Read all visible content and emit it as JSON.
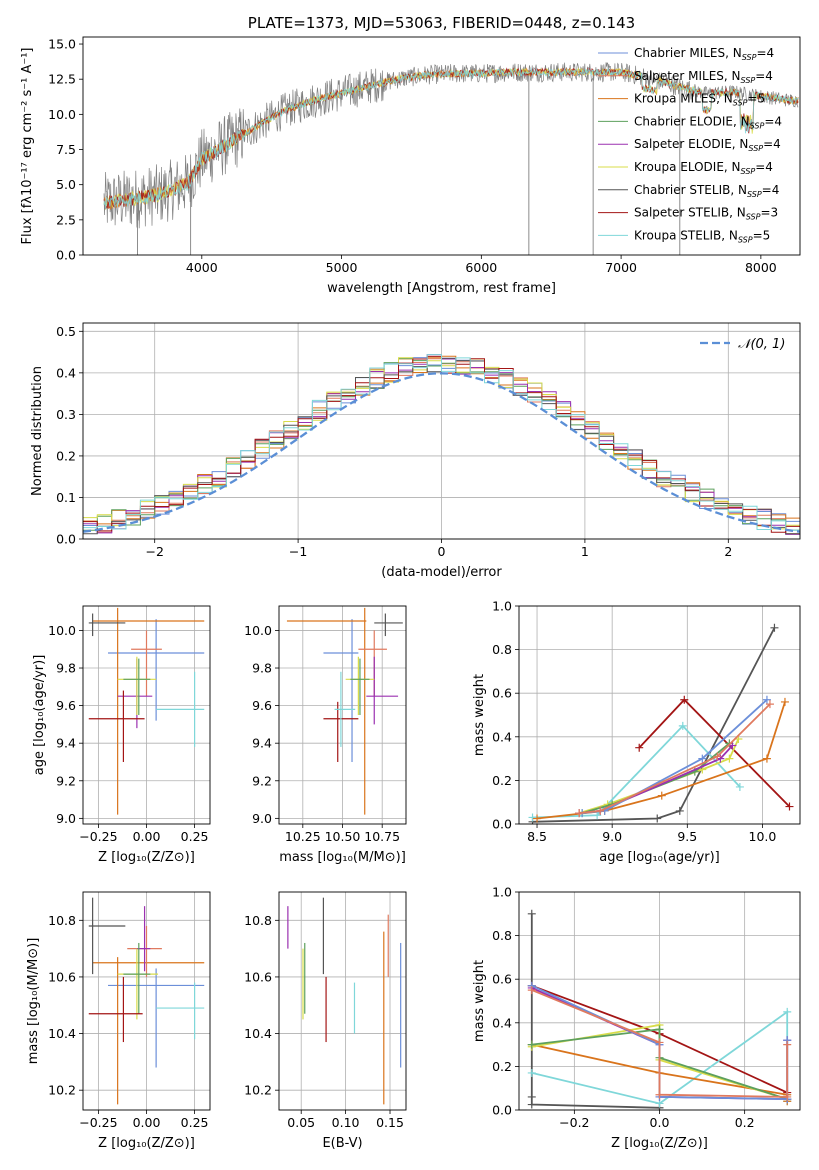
{
  "colors": {
    "Chabrier MILES": "#6c8fd9",
    "Salpeter MILES": "#e07a5f",
    "Kroupa MILES": "#d9741c",
    "Chabrier ELODIE": "#5da05d",
    "Salpeter ELODIE": "#9b30b0",
    "Kroupa ELODIE": "#d8dc4a",
    "Chabrier STELIB": "#555555",
    "Salpeter STELIB": "#a31515",
    "Kroupa STELIB": "#7fd7d9",
    "gaussian": "#5b8fd6",
    "data": "#808080"
  },
  "chart_data": [
    {
      "id": "spectrum",
      "type": "line",
      "title": "PLATE=1373, MJD=53063, FIBERID=0448, z=0.143",
      "xlabel": "wavelength [Angstrom, rest frame]",
      "ylabel": "Flux [fλ10⁻¹⁷ erg cm⁻² s⁻¹ A⁻¹]",
      "xlim": [
        3150,
        8280
      ],
      "ylim": [
        0,
        15.5
      ],
      "xticks": [
        4000,
        5000,
        6000,
        7000,
        8000
      ],
      "yticks": [
        0.0,
        2.5,
        5.0,
        7.5,
        10.0,
        12.5,
        15.0
      ],
      "legend_position": "top-right",
      "legend": [
        {
          "name": "Chabrier MILES",
          "nssp": "4"
        },
        {
          "name": "Salpeter MILES",
          "nssp": "4"
        },
        {
          "name": "Kroupa MILES",
          "nssp": "5"
        },
        {
          "name": "Chabrier ELODIE",
          "nssp": "4"
        },
        {
          "name": "Salpeter ELODIE",
          "nssp": "4"
        },
        {
          "name": "Kroupa ELODIE",
          "nssp": "4"
        },
        {
          "name": "Chabrier STELIB",
          "nssp": "4"
        },
        {
          "name": "Salpeter STELIB",
          "nssp": "3"
        },
        {
          "name": "Kroupa STELIB",
          "nssp": "5"
        }
      ],
      "continuum": {
        "wavelength": [
          3300,
          3500,
          3700,
          3900,
          4000,
          4200,
          4400,
          4600,
          4800,
          5000,
          5200,
          5400,
          5600,
          5800,
          6000,
          6200,
          6400,
          6600,
          6800,
          7000,
          7200,
          7400,
          7600,
          7800,
          8000,
          8200
        ],
        "flux": [
          3.7,
          4.0,
          4.3,
          5.1,
          6.8,
          8.0,
          9.2,
          10.3,
          11.0,
          11.5,
          12.0,
          12.5,
          12.8,
          12.9,
          12.9,
          13.0,
          13.0,
          13.0,
          13.0,
          13.0,
          12.6,
          12.0,
          11.5,
          11.6,
          11.3,
          11.0
        ]
      },
      "spikes": [
        {
          "wavelength": 3540,
          "flux_min": 0.0
        },
        {
          "wavelength": 3920,
          "flux_min": 0.0
        },
        {
          "wavelength": 6340,
          "flux_min": 0.0
        },
        {
          "wavelength": 6800,
          "flux_min": 0.0
        },
        {
          "wavelength": 7420,
          "flux_min": 0.0
        }
      ]
    },
    {
      "id": "residuals",
      "type": "histogram",
      "xlabel": "(data-model)/error",
      "ylabel": "Normed distribution",
      "xlim": [
        -2.5,
        2.5
      ],
      "ylim": [
        0,
        0.52
      ],
      "xticks": [
        -2,
        -1,
        0,
        1,
        2
      ],
      "yticks": [
        0.0,
        0.1,
        0.2,
        0.3,
        0.4,
        0.5
      ],
      "bin_width": 0.1,
      "legend_position": "top-right",
      "gaussian_label": "𝒩(0, 1)"
    },
    {
      "id": "age-vs-Z",
      "type": "errorbar",
      "xlabel": "Z [log₁₀(Z/Z⊙)]",
      "ylabel": "age  [log₁₀(age/yr)]",
      "xlim": [
        -0.33,
        0.33
      ],
      "ylim": [
        8.97,
        10.13
      ],
      "xticks": [
        -0.25,
        0.0,
        0.25
      ],
      "yticks": [
        9.0,
        9.2,
        9.4,
        9.6,
        9.8,
        10.0
      ],
      "points": [
        {
          "model": "Chabrier MILES",
          "x": 0.05,
          "xlo": -0.2,
          "xhi": 0.3,
          "y": 9.88,
          "ylo": 9.52,
          "yhi": 10.06
        },
        {
          "model": "Kroupa MILES",
          "x": -0.15,
          "xlo": -0.28,
          "xhi": 0.3,
          "y": 10.05,
          "ylo": 9.02,
          "yhi": 10.12
        },
        {
          "model": "Salpeter MILES",
          "x": 0.0,
          "xlo": -0.08,
          "xhi": 0.08,
          "y": 9.9,
          "ylo": 9.65,
          "yhi": 10.0
        },
        {
          "model": "Salpeter ELODIE",
          "x": -0.05,
          "xlo": -0.15,
          "xhi": 0.03,
          "y": 9.65,
          "ylo": 9.48,
          "yhi": 9.85
        },
        {
          "model": "Kroupa ELODIE",
          "x": -0.05,
          "xlo": -0.15,
          "xhi": 0.05,
          "y": 9.74,
          "ylo": 9.55,
          "yhi": 9.86
        },
        {
          "model": "Chabrier ELODIE",
          "x": -0.04,
          "xlo": -0.12,
          "xhi": 0.02,
          "y": 9.74,
          "ylo": 9.55,
          "yhi": 9.85
        },
        {
          "model": "Chabrier STELIB",
          "x": -0.28,
          "xlo": -0.3,
          "xhi": -0.11,
          "y": 10.04,
          "ylo": 9.97,
          "yhi": 10.09
        },
        {
          "model": "Salpeter STELIB",
          "x": -0.12,
          "xlo": -0.3,
          "xhi": -0.01,
          "y": 9.53,
          "ylo": 9.3,
          "yhi": 9.68
        },
        {
          "model": "Kroupa STELIB",
          "x": 0.25,
          "xlo": 0.05,
          "xhi": 0.3,
          "y": 9.58,
          "ylo": 9.38,
          "yhi": 9.78
        }
      ]
    },
    {
      "id": "age-vs-mass",
      "type": "errorbar",
      "xlabel": "mass [log₁₀(M/M⊙)]",
      "ylabel": "",
      "xlim": [
        10.1,
        10.9
      ],
      "ylim": [
        8.97,
        10.13
      ],
      "xticks": [
        10.25,
        10.5,
        10.75
      ],
      "yticks": [
        9.0,
        9.2,
        9.4,
        9.6,
        9.8,
        10.0
      ],
      "points": [
        {
          "model": "Chabrier MILES",
          "x": 10.56,
          "xlo": 10.38,
          "xhi": 10.6,
          "y": 9.88,
          "ylo": 9.3,
          "yhi": 10.06
        },
        {
          "model": "Kroupa MILES",
          "x": 10.64,
          "xlo": 10.15,
          "xhi": 10.65,
          "y": 10.05,
          "ylo": 9.02,
          "yhi": 10.12
        },
        {
          "model": "Salpeter MILES",
          "x": 10.7,
          "xlo": 10.6,
          "xhi": 10.78,
          "y": 9.9,
          "ylo": 9.65,
          "yhi": 10.0
        },
        {
          "model": "Salpeter ELODIE",
          "x": 10.7,
          "xlo": 10.65,
          "xhi": 10.85,
          "y": 9.65,
          "ylo": 9.5,
          "yhi": 9.86
        },
        {
          "model": "Kroupa ELODIE",
          "x": 10.6,
          "xlo": 10.52,
          "xhi": 10.7,
          "y": 9.74,
          "ylo": 9.55,
          "yhi": 9.86
        },
        {
          "model": "Chabrier ELODIE",
          "x": 10.61,
          "xlo": 10.55,
          "xhi": 10.67,
          "y": 9.74,
          "ylo": 9.55,
          "yhi": 9.85
        },
        {
          "model": "Chabrier STELIB",
          "x": 10.77,
          "xlo": 10.7,
          "xhi": 10.88,
          "y": 10.04,
          "ylo": 9.97,
          "yhi": 10.09
        },
        {
          "model": "Salpeter STELIB",
          "x": 10.47,
          "xlo": 10.38,
          "xhi": 10.6,
          "y": 9.53,
          "ylo": 9.3,
          "yhi": 9.62
        },
        {
          "model": "Kroupa STELIB",
          "x": 10.49,
          "xlo": 10.45,
          "xhi": 10.58,
          "y": 9.58,
          "ylo": 9.38,
          "yhi": 9.78
        }
      ]
    },
    {
      "id": "weight-vs-age",
      "type": "line",
      "xlabel": "age  [log₁₀(age/yr)]",
      "ylabel": "mass weight",
      "xlim": [
        8.38,
        10.25
      ],
      "ylim": [
        0,
        1.0
      ],
      "xticks": [
        8.5,
        9.0,
        9.5,
        10.0
      ],
      "yticks": [
        0.0,
        0.2,
        0.4,
        0.6,
        0.8,
        1.0
      ],
      "series": [
        {
          "model": "Chabrier STELIB",
          "x": [
            8.47,
            9.3,
            9.45,
            10.08
          ],
          "y": [
            0.01,
            0.025,
            0.06,
            0.9
          ]
        },
        {
          "model": "Salpeter STELIB",
          "x": [
            9.18,
            9.48,
            10.18
          ],
          "y": [
            0.35,
            0.57,
            0.08
          ]
        },
        {
          "model": "Kroupa STELIB",
          "x": [
            8.47,
            8.9,
            9.47,
            9.85
          ],
          "y": [
            0.03,
            0.04,
            0.45,
            0.17
          ]
        },
        {
          "model": "Kroupa MILES",
          "x": [
            8.5,
            8.95,
            9.33,
            10.03,
            10.15
          ],
          "y": [
            0.025,
            0.06,
            0.13,
            0.3,
            0.56
          ]
        },
        {
          "model": "Kroupa ELODIE",
          "x": [
            8.78,
            8.97,
            9.6,
            9.78,
            9.84
          ],
          "y": [
            0.05,
            0.09,
            0.25,
            0.3,
            0.39
          ]
        },
        {
          "model": "Chabrier ELODIE",
          "x": [
            8.8,
            9.0,
            9.55,
            9.78
          ],
          "y": [
            0.05,
            0.09,
            0.24,
            0.37
          ]
        },
        {
          "model": "Salpeter ELODIE",
          "x": [
            8.78,
            8.92,
            9.72,
            9.8
          ],
          "y": [
            0.05,
            0.06,
            0.3,
            0.36
          ]
        },
        {
          "model": "Chabrier MILES",
          "x": [
            8.8,
            8.95,
            9.6,
            10.03
          ],
          "y": [
            0.05,
            0.06,
            0.3,
            0.57
          ]
        },
        {
          "model": "Salpeter MILES",
          "x": [
            8.78,
            8.92,
            9.7,
            10.05
          ],
          "y": [
            0.05,
            0.06,
            0.31,
            0.55
          ]
        }
      ]
    },
    {
      "id": "mass-vs-Z",
      "type": "errorbar",
      "xlabel": "Z [log₁₀(Z/Z⊙)]",
      "ylabel": "mass [log₁₀(M/M⊙)]",
      "xlim": [
        -0.33,
        0.33
      ],
      "ylim": [
        10.13,
        10.9
      ],
      "xticks": [
        -0.25,
        0.0,
        0.25
      ],
      "yticks": [
        10.2,
        10.4,
        10.6,
        10.8
      ],
      "points": [
        {
          "model": "Chabrier MILES",
          "x": 0.05,
          "xlo": -0.2,
          "xhi": 0.3,
          "y": 10.57,
          "ylo": 10.28,
          "yhi": 10.63
        },
        {
          "model": "Kroupa MILES",
          "x": -0.15,
          "xlo": -0.28,
          "xhi": 0.3,
          "y": 10.65,
          "ylo": 10.15,
          "yhi": 10.67
        },
        {
          "model": "Salpeter MILES",
          "x": 0.0,
          "xlo": -0.1,
          "xhi": 0.08,
          "y": 10.7,
          "ylo": 10.6,
          "yhi": 10.78
        },
        {
          "model": "Salpeter ELODIE",
          "x": -0.01,
          "xlo": -0.05,
          "xhi": 0.02,
          "y": 10.7,
          "ylo": 10.62,
          "yhi": 10.85
        },
        {
          "model": "Kroupa ELODIE",
          "x": -0.05,
          "xlo": -0.15,
          "xhi": 0.06,
          "y": 10.61,
          "ylo": 10.45,
          "yhi": 10.7
        },
        {
          "model": "Chabrier ELODIE",
          "x": -0.04,
          "xlo": -0.12,
          "xhi": 0.02,
          "y": 10.61,
          "ylo": 10.47,
          "yhi": 10.72
        },
        {
          "model": "Chabrier STELIB",
          "x": -0.28,
          "xlo": -0.3,
          "xhi": -0.11,
          "y": 10.78,
          "ylo": 10.61,
          "yhi": 10.88
        },
        {
          "model": "Salpeter STELIB",
          "x": -0.12,
          "xlo": -0.3,
          "xhi": -0.02,
          "y": 10.47,
          "ylo": 10.37,
          "yhi": 10.6
        },
        {
          "model": "Kroupa STELIB",
          "x": 0.25,
          "xlo": 0.05,
          "xhi": 0.3,
          "y": 10.49,
          "ylo": 10.38,
          "yhi": 10.58
        }
      ]
    },
    {
      "id": "mass-vs-ebv",
      "type": "errorbar",
      "xlabel": "E(B-V)",
      "ylabel": "",
      "xlim": [
        0.025,
        0.168
      ],
      "ylim": [
        10.13,
        10.9
      ],
      "xticks": [
        0.05,
        0.1,
        0.15
      ],
      "yticks": [
        10.2,
        10.4,
        10.6,
        10.8
      ],
      "points": [
        {
          "model": "Salpeter ELODIE",
          "x": 0.035,
          "y": 10.78,
          "ylo": 10.7,
          "yhi": 10.85
        },
        {
          "model": "Kroupa ELODIE",
          "x": 0.052,
          "y": 10.6,
          "ylo": 10.45,
          "yhi": 10.7
        },
        {
          "model": "Chabrier ELODIE",
          "x": 0.054,
          "y": 10.6,
          "ylo": 10.47,
          "yhi": 10.72
        },
        {
          "model": "Chabrier STELIB",
          "x": 0.075,
          "y": 10.78,
          "ylo": 10.61,
          "yhi": 10.88
        },
        {
          "model": "Salpeter STELIB",
          "x": 0.078,
          "y": 10.48,
          "ylo": 10.37,
          "yhi": 10.6
        },
        {
          "model": "Kroupa STELIB",
          "x": 0.11,
          "y": 10.5,
          "ylo": 10.4,
          "yhi": 10.58
        },
        {
          "model": "Kroupa MILES",
          "x": 0.143,
          "y": 10.45,
          "ylo": 10.15,
          "yhi": 10.76
        },
        {
          "model": "Salpeter MILES",
          "x": 0.148,
          "y": 10.7,
          "ylo": 10.6,
          "yhi": 10.82
        },
        {
          "model": "Chabrier MILES",
          "x": 0.162,
          "y": 10.5,
          "ylo": 10.28,
          "yhi": 10.72
        }
      ]
    },
    {
      "id": "weight-vs-Z",
      "type": "line",
      "xlabel": "Z [log₁₀(Z/Z⊙)]",
      "ylabel": "mass weight",
      "xlim": [
        -0.33,
        0.33
      ],
      "ylim": [
        0,
        1.0
      ],
      "xticks": [
        -0.2,
        0.0,
        0.2
      ],
      "yticks": [
        0.0,
        0.2,
        0.4,
        0.6,
        0.8,
        1.0
      ],
      "series": [
        {
          "model": "Chabrier STELIB",
          "x": [
            -0.3,
            -0.3,
            -0.3,
            0.0,
            0.0
          ],
          "y": [
            0.9,
            0.06,
            0.025,
            0.01,
            0.01
          ]
        },
        {
          "model": "Salpeter STELIB",
          "x": [
            -0.3,
            0.0,
            0.3
          ],
          "y": [
            0.57,
            0.35,
            0.08
          ]
        },
        {
          "model": "Kroupa STELIB",
          "x": [
            -0.3,
            0.0,
            0.3,
            0.3
          ],
          "y": [
            0.17,
            0.03,
            0.45,
            0.04
          ]
        },
        {
          "model": "Kroupa MILES",
          "x": [
            -0.3,
            0.0,
            0.3,
            0.3
          ],
          "y": [
            0.3,
            0.17,
            0.07,
            0.04
          ]
        },
        {
          "model": "Kroupa ELODIE",
          "x": [
            -0.3,
            0.0,
            0.0,
            0.3
          ],
          "y": [
            0.29,
            0.39,
            0.23,
            0.05
          ]
        },
        {
          "model": "Chabrier ELODIE",
          "x": [
            -0.3,
            0.0,
            0.0,
            0.3
          ],
          "y": [
            0.3,
            0.37,
            0.24,
            0.05
          ]
        },
        {
          "model": "Salpeter ELODIE",
          "x": [
            -0.3,
            0.0,
            0.0,
            0.3,
            0.3
          ],
          "y": [
            0.56,
            0.3,
            0.06,
            0.05,
            0.32
          ]
        },
        {
          "model": "Chabrier MILES",
          "x": [
            -0.3,
            0.0,
            0.0,
            0.3,
            0.3
          ],
          "y": [
            0.57,
            0.3,
            0.06,
            0.05,
            0.32
          ]
        },
        {
          "model": "Salpeter MILES",
          "x": [
            -0.3,
            0.0,
            0.0,
            0.3,
            0.3
          ],
          "y": [
            0.55,
            0.31,
            0.07,
            0.06,
            0.3
          ]
        }
      ]
    }
  ]
}
